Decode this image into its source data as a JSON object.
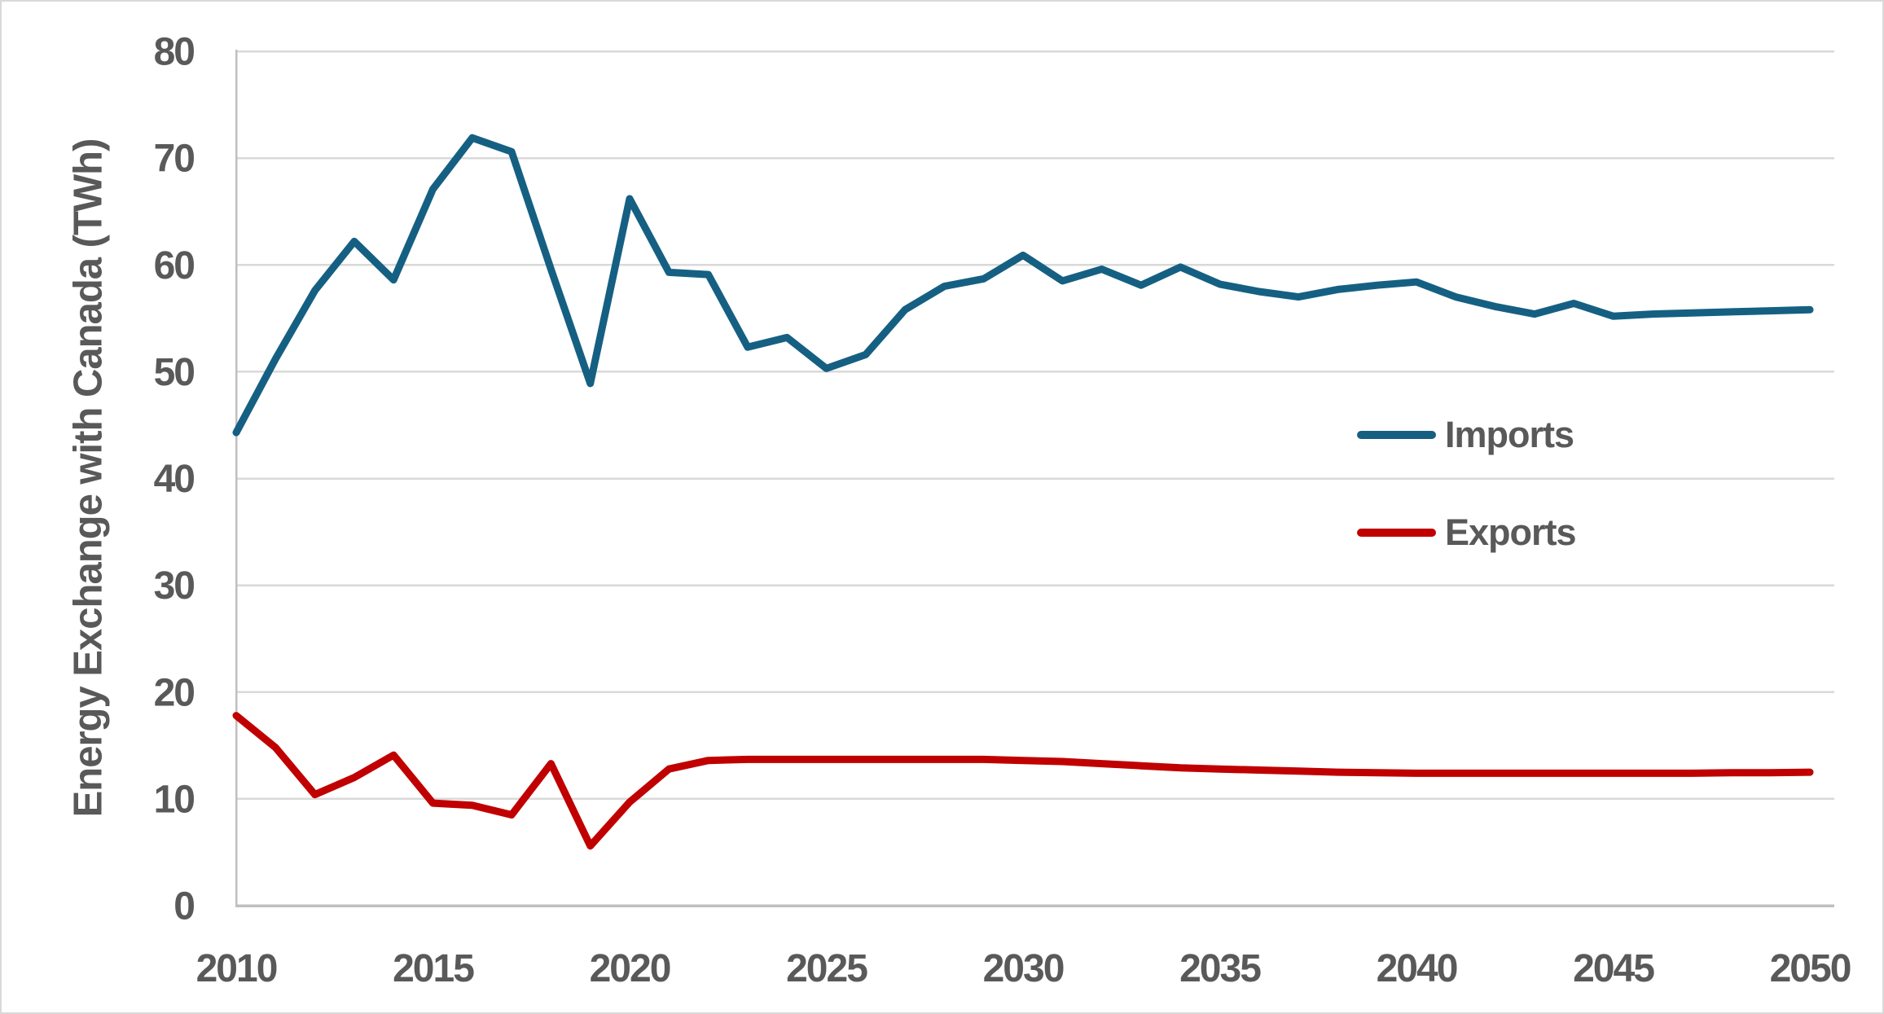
{
  "chart_data": {
    "type": "line",
    "title": "",
    "xlabel": "",
    "ylabel": "Energy Exchange with Canada (TWh)",
    "x": [
      2010,
      2011,
      2012,
      2013,
      2014,
      2015,
      2016,
      2017,
      2018,
      2019,
      2020,
      2021,
      2022,
      2023,
      2024,
      2025,
      2026,
      2027,
      2028,
      2029,
      2030,
      2031,
      2032,
      2033,
      2034,
      2035,
      2036,
      2037,
      2038,
      2039,
      2040,
      2041,
      2042,
      2043,
      2044,
      2045,
      2046,
      2047,
      2048,
      2049,
      2050
    ],
    "series": [
      {
        "name": "Imports",
        "color": "#156082",
        "values": [
          44.3,
          51.2,
          57.6,
          62.2,
          58.6,
          67.1,
          71.9,
          70.6,
          59.6,
          48.9,
          66.2,
          59.3,
          59.1,
          52.3,
          53.2,
          50.3,
          51.6,
          55.8,
          58.0,
          58.7,
          60.9,
          58.5,
          59.6,
          58.1,
          59.8,
          58.2,
          57.5,
          57.0,
          57.7,
          58.1,
          58.4,
          57.0,
          56.1,
          55.4,
          56.4,
          55.2,
          55.4,
          55.5,
          55.6,
          55.7,
          55.8
        ]
      },
      {
        "name": "Exports",
        "color": "#c00000",
        "values": [
          17.8,
          14.8,
          10.4,
          12.0,
          14.1,
          9.6,
          9.4,
          8.5,
          13.3,
          5.6,
          9.7,
          12.8,
          13.6,
          13.7,
          13.7,
          13.7,
          13.7,
          13.7,
          13.7,
          13.7,
          13.6,
          13.5,
          13.3,
          13.1,
          12.9,
          12.8,
          12.7,
          12.6,
          12.5,
          12.45,
          12.4,
          12.4,
          12.4,
          12.4,
          12.4,
          12.4,
          12.4,
          12.4,
          12.45,
          12.45,
          12.5
        ]
      }
    ],
    "ylim": [
      0,
      80
    ],
    "yticks": [
      0,
      10,
      20,
      30,
      40,
      50,
      60,
      70,
      80
    ],
    "xticks": [
      2010,
      2015,
      2020,
      2025,
      2030,
      2035,
      2040,
      2045,
      2050
    ],
    "grid": "horizontal",
    "legend_position": "middle-right",
    "colors": {
      "tick_label": "#595959",
      "gridline": "#d9d9d9",
      "axis_line": "#bfbfbf",
      "background": "#ffffff",
      "frame_border": "#d9d9d9"
    }
  }
}
